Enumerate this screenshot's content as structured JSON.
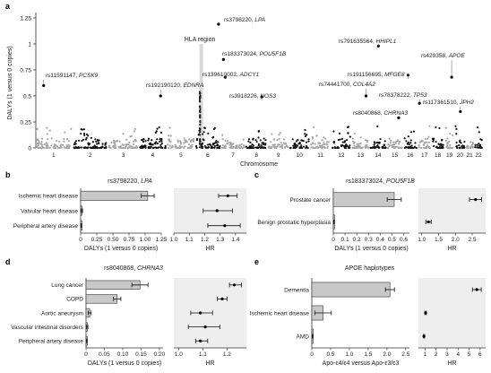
{
  "chart_data": [
    {
      "panel": "a",
      "type": "scatter",
      "xlabel": "Chromosome",
      "ylabel": "DALYs (1 versus 0 copies)",
      "ylim": [
        0,
        1.25
      ],
      "yticks": [
        "0",
        "0.25",
        "0.5",
        "0.75",
        "1",
        "1.25"
      ],
      "chromosomes": [
        "1",
        "2",
        "3",
        "4",
        "5",
        "6",
        "7",
        "8",
        "9",
        "10",
        "11",
        "12",
        "13",
        "14",
        "15",
        "16",
        "17",
        "18",
        "19",
        "20",
        "21",
        "22"
      ],
      "chrom_sizes": [
        249,
        242,
        198,
        190,
        181,
        171,
        159,
        145,
        138,
        134,
        135,
        133,
        114,
        107,
        102,
        90,
        83,
        80,
        59,
        64,
        47,
        51
      ],
      "region_label": "HLA region",
      "grid": "off",
      "highlights": [
        {
          "chr": 6,
          "pos": 161,
          "value": 1.19,
          "rsid": "rs3798220",
          "gene": "LPA"
        },
        {
          "chr": 7,
          "pos": 12,
          "value": 0.85,
          "rsid": "rs183373024",
          "gene": "POU5F1B"
        },
        {
          "chr": 7,
          "pos": 25,
          "value": 0.68,
          "rsid": "rs139610002",
          "gene": "ADCY1"
        },
        {
          "chr": 8,
          "pos": 110,
          "value": 0.49,
          "rsid": "rs3918226",
          "gene": "NOS3"
        },
        {
          "chr": 4,
          "pos": 150,
          "value": 0.5,
          "rsid": "rs192190120",
          "gene": "EDNRA"
        },
        {
          "chr": 1,
          "pos": 55,
          "value": 0.6,
          "rsid": "rs11591147",
          "gene": "PCSK9"
        },
        {
          "chr": 14,
          "pos": 55,
          "value": 0.98,
          "rsid": "rs791635564",
          "gene": "HHIPL1"
        },
        {
          "chr": 16,
          "pos": 30,
          "value": 0.7,
          "rsid": "rs191156695",
          "gene": "MFGE8"
        },
        {
          "chr": 13,
          "pos": 95,
          "value": 0.5,
          "rsid": "rs74441700",
          "gene": "COL4A2"
        },
        {
          "chr": 17,
          "pos": 7,
          "value": 0.43,
          "rsid": "rs78378222",
          "gene": "TP53"
        },
        {
          "chr": 19,
          "pos": 45,
          "value": 0.68,
          "rsid": "rs429358",
          "gene": "APOE"
        },
        {
          "chr": 20,
          "pos": 35,
          "value": 0.35,
          "rsid": "rs117361510",
          "gene": "JPH2"
        },
        {
          "chr": 15,
          "pos": 78,
          "value": 0.29,
          "rsid": "rs8040868",
          "gene": "CHRNA3"
        }
      ]
    },
    {
      "panel": "b",
      "type": "bar",
      "title": "rs3798220",
      "gene": "LPA",
      "categories": [
        "Ischemic heart disease",
        "Valvular heart disease",
        "Peripheral artery disease"
      ],
      "values": [
        1.04,
        0.02,
        0.01
      ],
      "errors": [
        0.1,
        0.01,
        0.005
      ],
      "xlabel": "DALYs (1 versus 0 copies)",
      "xlim": [
        0,
        1.25
      ],
      "xticks": [
        "0",
        "0.25",
        "0.50",
        "0.75",
        "1.00",
        "1.25"
      ],
      "hr": {
        "values": [
          1.35,
          1.28,
          1.33
        ],
        "lo": [
          1.29,
          1.19,
          1.22
        ],
        "hi": [
          1.41,
          1.38,
          1.43
        ],
        "xlim": [
          1.0,
          1.47
        ],
        "xticks": [
          "1.0",
          "1.1",
          "1.2",
          "1.3",
          "1.4"
        ],
        "xlabel": "HR"
      }
    },
    {
      "panel": "c",
      "type": "bar",
      "title": "rs183373024",
      "gene": "POU5F1B",
      "categories": [
        "Prostate cancer",
        "Benign prostatic hyperplasia"
      ],
      "values": [
        0.52,
        0.005
      ],
      "errors": [
        0.06,
        0.003
      ],
      "xlabel": "DALYs (1 versus 0 copies)",
      "xlim": [
        0,
        0.65
      ],
      "xticks": [
        "0",
        "0.1",
        "0.2",
        "0.3",
        "0.4",
        "0.5",
        "0.6"
      ],
      "hr": {
        "values": [
          2.6,
          1.2
        ],
        "lo": [
          2.42,
          1.12
        ],
        "hi": [
          2.78,
          1.28
        ],
        "xlim": [
          0.9,
          2.9
        ],
        "xticks": [
          "1.0",
          "1.5",
          "2.0",
          "2.5"
        ],
        "xlabel": "HR"
      }
    },
    {
      "panel": "d",
      "type": "bar",
      "title": "rs8040868",
      "gene": "CHRNA3",
      "categories": [
        "Lung cancer",
        "COPD",
        "Aortic aneurysm",
        "Vascular intestinal disorders",
        "Peripheral artery disease"
      ],
      "values": [
        0.147,
        0.085,
        0.01,
        0.003,
        0.002
      ],
      "errors": [
        0.022,
        0.01,
        0.004,
        0.002,
        0.001
      ],
      "xlabel": "DALYs (1 versus 0 copies)",
      "xlim": [
        0,
        0.21
      ],
      "xticks": [
        "0",
        "0.05",
        "0.10",
        "0.15",
        "0.20"
      ],
      "hr": {
        "values": [
          1.23,
          1.18,
          1.09,
          1.11,
          1.09
        ],
        "lo": [
          1.21,
          1.16,
          1.05,
          1.04,
          1.07
        ],
        "hi": [
          1.26,
          1.2,
          1.14,
          1.17,
          1.12
        ],
        "xlim": [
          0.98,
          1.28
        ],
        "xticks": [
          "1.0",
          "1.1",
          "1.2"
        ],
        "xlabel": "HR"
      }
    },
    {
      "panel": "e",
      "type": "bar",
      "title": "APOE haplotypes",
      "gene": "",
      "categories": [
        "Dementia",
        "Ischemic heart disease",
        "AMD"
      ],
      "values": [
        2.08,
        0.3,
        0.02
      ],
      "errors": [
        0.12,
        0.22,
        0.01
      ],
      "xlabel": "Apo-ε4/ε4 versus Apo-ε3/ε3",
      "xlim": [
        0,
        2.6
      ],
      "xticks": [
        "0",
        "0.5",
        "1.0",
        "1.5",
        "2.0",
        "2.5"
      ],
      "hr": {
        "values": [
          5.7,
          1.05,
          0.9
        ],
        "lo": [
          5.3,
          0.98,
          0.84
        ],
        "hi": [
          6.1,
          1.12,
          0.96
        ],
        "xlim": [
          0.4,
          6.5
        ],
        "xticks": [
          "1",
          "2",
          "3",
          "4",
          "5",
          "6"
        ],
        "xlabel": "HR"
      }
    }
  ],
  "colors": {
    "point_dark": "#111111",
    "point_light": "#a6a6a6",
    "bar_fill": "#c8c8c8",
    "hr_bg": "#eeeeee",
    "hla_band": "#d9d9d9"
  }
}
